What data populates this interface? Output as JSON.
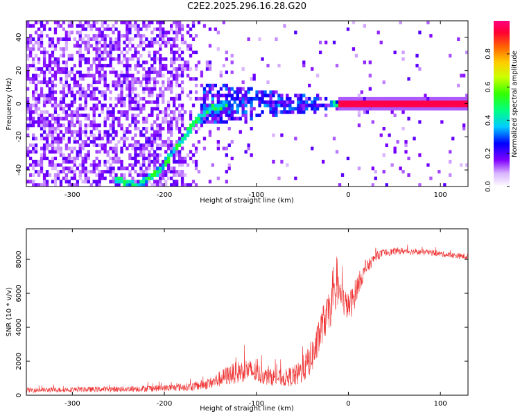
{
  "title": "C2E2.2025.296.16.28.G20",
  "chart_data": [
    {
      "type": "heatmap",
      "title": "C2E2.2025.296.16.28.G20",
      "xlabel": "Height of straight line (km)",
      "ylabel": "Frequency (Hz)",
      "xlim": [
        -350,
        130
      ],
      "ylim": [
        -50,
        50
      ],
      "xticks": [
        -300,
        -200,
        -100,
        0,
        100
      ],
      "xtick_labels": [
        "-300",
        "-200",
        "-100",
        "0",
        "100"
      ],
      "yticks": [
        -40,
        -20,
        0,
        20,
        40
      ],
      "ytick_labels": [
        "-40",
        "-20",
        "0",
        "20",
        "40"
      ],
      "colorbar": {
        "label": "Normalized spectral amplitude",
        "range": [
          0,
          1
        ],
        "ticks": [
          0.0,
          0.2,
          0.4,
          0.6,
          0.8
        ],
        "tick_labels": [
          "0.0",
          "0.2",
          "0.4",
          "0.6",
          "0.8"
        ]
      },
      "features": {
        "carrier_line_hz": 0,
        "carrier_strong_from_km": -12,
        "doppler_track": [
          [
            -255,
            -45
          ],
          [
            -230,
            -50
          ],
          [
            -205,
            -40
          ],
          [
            -185,
            -25
          ],
          [
            -165,
            -10
          ],
          [
            -150,
            -3
          ],
          [
            -130,
            0
          ]
        ],
        "scatter_band_km": [
          -160,
          -20
        ]
      }
    },
    {
      "type": "line",
      "xlabel": "Height of straight line (km)",
      "ylabel": "SNR (10 * v/v)",
      "xlim": [
        -350,
        130
      ],
      "ylim": [
        0,
        9800
      ],
      "xticks": [
        -300,
        -200,
        -100,
        0,
        100
      ],
      "xtick_labels": [
        "-300",
        "-200",
        "-100",
        "0",
        "100"
      ],
      "yticks": [
        0,
        2000,
        4000,
        6000,
        8000
      ],
      "ytick_labels": [
        "0",
        "2000",
        "4000",
        "6000",
        "8000"
      ],
      "color": "#ee3333",
      "series": [
        {
          "name": "SNR",
          "x": [
            -350,
            -300,
            -250,
            -200,
            -170,
            -150,
            -130,
            -110,
            -100,
            -90,
            -70,
            -55,
            -45,
            -35,
            -28,
            -20,
            -12,
            -5,
            0,
            5,
            10,
            15,
            20,
            30,
            40,
            55,
            70,
            90,
            110,
            130
          ],
          "y": [
            300,
            330,
            360,
            420,
            500,
            700,
            1200,
            1500,
            1300,
            1100,
            1000,
            1200,
            1800,
            2800,
            4200,
            5000,
            6300,
            5500,
            5200,
            5600,
            6500,
            7000,
            7500,
            8200,
            8400,
            8500,
            8450,
            8400,
            8250,
            8150
          ],
          "noise": [
            150,
            150,
            170,
            200,
            250,
            350,
            600,
            700,
            600,
            500,
            500,
            700,
            900,
            1100,
            1100,
            1100,
            1000,
            900,
            800,
            900,
            700,
            500,
            400,
            280,
            220,
            200,
            180,
            170,
            170,
            170
          ]
        }
      ]
    }
  ]
}
